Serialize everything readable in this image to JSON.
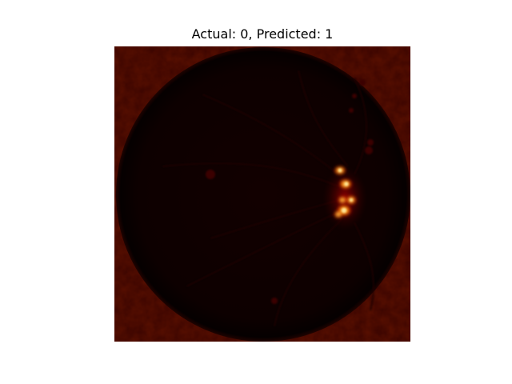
{
  "figure": {
    "title": "Actual: 0, Predicted: 1"
  },
  "image": {
    "colormap": "hot",
    "colors": {
      "background": "#3a0400",
      "fundus_disc": "#120000",
      "rim": "#050000",
      "hotspot_red": "#b30000",
      "hotspot_orange": "#ff6a00",
      "hotspot_yellow": "#ffe27a"
    }
  }
}
